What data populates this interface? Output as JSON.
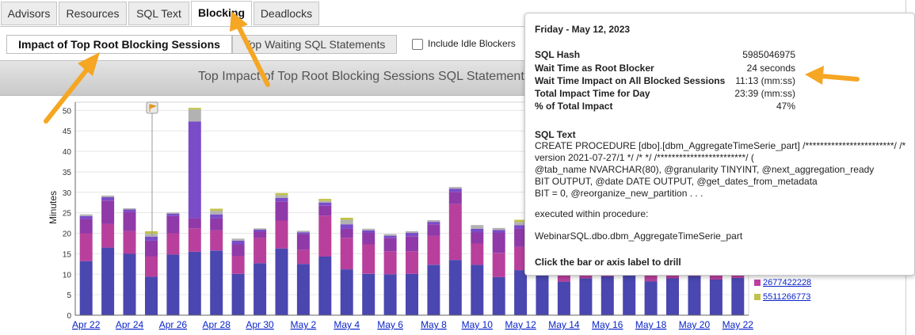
{
  "tabs": [
    {
      "label": "Advisors",
      "active": false
    },
    {
      "label": "Resources",
      "active": false
    },
    {
      "label": "SQL Text",
      "active": false
    },
    {
      "label": "Blocking",
      "active": true
    },
    {
      "label": "Deadlocks",
      "active": false
    }
  ],
  "subtabs": [
    {
      "label": "Impact of Top Root Blocking Sessions",
      "active": true
    },
    {
      "label": "Top Waiting SQL Statements",
      "active": false
    }
  ],
  "include_idle_label": "Include Idle Blockers",
  "include_idle_checked": false,
  "banner_title": "Top Impact of Top Root Blocking Sessions SQL Statements",
  "tooltip": {
    "date": "Friday - May 12, 2023",
    "rows": [
      {
        "label": "SQL Hash",
        "value": "5985046975"
      },
      {
        "label": "Wait Time as Root Blocker",
        "value": "24 seconds"
      },
      {
        "label": "Wait Time Impact on All Blocked Sessions",
        "value": "11:13 (mm:ss)"
      },
      {
        "label": "Total Impact Time for Day",
        "value": "23:39 (mm:ss)"
      },
      {
        "label": "% of Total Impact",
        "value": "47%"
      }
    ],
    "sql_text_heading": "SQL Text",
    "sql_text_lines": [
      "CREATE PROCEDURE [dbo].[dbm_AggregateTimeSerie_part] /************************/ /*",
      "version 2021-07-27/1 */ /* */ /************************/ (",
      "@tab_name NVARCHAR(80), @granularity TINYINT, @next_aggregation_ready",
      "BIT OUTPUT, @date DATE OUTPUT, @get_dates_from_metadata",
      "BIT = 0, @reorganize_new_partition . . ."
    ],
    "executed_label": "executed within procedure:",
    "procedure": "WebinarSQL.dbo.dbm_AggregateTimeSerie_part",
    "hint": "Click the bar or axis label to drill"
  },
  "legend": [
    {
      "label": "2677422228",
      "color": "#c040a0"
    },
    {
      "label": "5511266773",
      "color": "#c2c24a"
    }
  ],
  "chart_data": {
    "type": "bar",
    "stacked": true,
    "ylabel": "Minutes",
    "ylim": [
      0,
      52
    ],
    "yticks": [
      0,
      5,
      10,
      15,
      20,
      25,
      30,
      35,
      40,
      45,
      50
    ],
    "x_tick_labels": [
      "Apr 22",
      "Apr 24",
      "Apr 26",
      "Apr 28",
      "Apr 30",
      "May 2",
      "May 4",
      "May 6",
      "May 8",
      "May 10",
      "May 12",
      "May 14",
      "May 16",
      "May 18",
      "May 20",
      "May 22"
    ],
    "categories": [
      "Apr 22",
      "Apr 23",
      "Apr 24",
      "Apr 25",
      "Apr 26",
      "Apr 27",
      "Apr 28",
      "Apr 29",
      "Apr 30",
      "May 1",
      "May 2",
      "May 3",
      "May 4",
      "May 5",
      "May 6",
      "May 7",
      "May 8",
      "May 9",
      "May 10",
      "May 11",
      "May 12",
      "May 13",
      "May 14",
      "May 15",
      "May 16",
      "May 17",
      "May 18",
      "May 19",
      "May 20",
      "May 21",
      "May 22"
    ],
    "segment_colors": [
      "#4a47b0",
      "#b8409c",
      "#8f3aa8",
      "#7a4cc8",
      "#b2b2b2",
      "#c2c24a",
      "#4bb07e",
      "#5b8fd6"
    ],
    "stacks": [
      [
        13.2,
        6.8,
        3.5,
        0.7,
        0.4
      ],
      [
        16.5,
        5.8,
        5.7,
        0.8,
        0.4
      ],
      [
        15.0,
        5.5,
        4.7,
        0.6,
        0.3
      ],
      [
        9.4,
        5.0,
        3.8,
        1.0,
        0.7,
        0.6
      ],
      [
        14.8,
        5.2,
        4.2,
        0.6,
        0.3
      ],
      [
        15.5,
        5.7,
        2.5,
        23.6,
        2.9,
        0.4
      ],
      [
        15.8,
        4.9,
        2.9,
        1.0,
        0.9,
        0.5
      ],
      [
        10.1,
        4.4,
        2.8,
        0.9,
        0.5
      ],
      [
        12.7,
        6.2,
        1.5,
        0.5,
        0.3
      ],
      [
        16.3,
        6.8,
        4.7,
        0.8,
        0.7,
        0.5
      ],
      [
        12.5,
        3.5,
        3.8,
        0.4,
        0.4
      ],
      [
        14.3,
        10.0,
        2.4,
        0.8,
        0.4,
        0.5
      ],
      [
        11.2,
        7.7,
        2.2,
        1.1,
        1.1,
        0.5
      ],
      [
        10.1,
        7.2,
        2.8,
        0.6,
        0.4
      ],
      [
        10.0,
        5.6,
        3.2,
        0.6,
        0.4
      ],
      [
        10.1,
        5.5,
        3.7,
        0.8,
        0.4
      ],
      [
        12.3,
        7.1,
        2.8,
        0.6,
        0.4
      ],
      [
        13.5,
        13.6,
        3.0,
        0.8,
        0.4
      ],
      [
        12.3,
        5.2,
        2.7,
        0.9,
        0.9
      ],
      [
        9.3,
        5.9,
        4.9,
        0.7,
        0.5
      ],
      [
        11.0,
        5.7,
        4.4,
        0.9,
        0.8,
        0.5
      ],
      [
        10.5,
        6.0,
        4.0,
        0.8,
        0.5
      ],
      [
        8.2,
        5.0,
        3.2,
        0.6,
        0.4
      ],
      [
        9.0,
        4.8,
        3.6,
        0.6,
        0.4
      ],
      [
        9.5,
        5.1,
        3.8,
        0.7,
        0.4
      ],
      [
        9.8,
        5.2,
        3.5,
        0.6,
        0.4
      ],
      [
        8.3,
        5.5,
        4.0,
        0.6,
        0.4
      ],
      [
        9.0,
        5.0,
        3.8,
        0.6,
        0.4
      ],
      [
        9.6,
        5.0,
        3.6,
        0.6,
        0.4
      ],
      [
        8.7,
        5.2,
        3.9,
        0.6,
        0.4
      ],
      [
        9.1,
        5.1,
        3.6,
        0.6,
        0.4
      ]
    ]
  }
}
